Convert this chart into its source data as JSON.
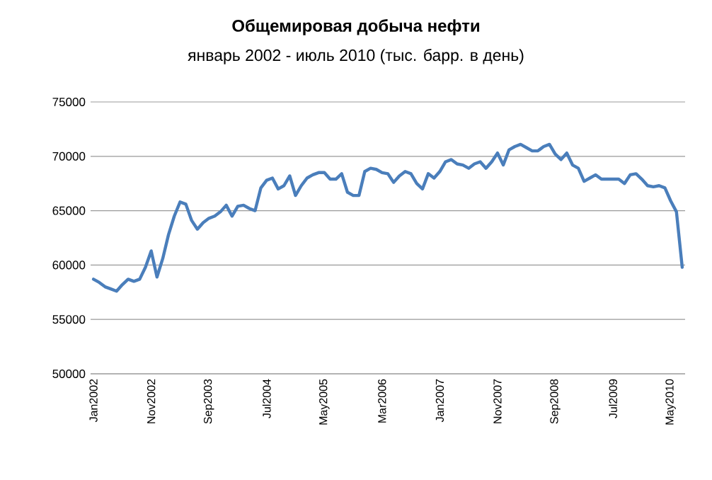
{
  "chart_data": {
    "type": "line",
    "title": "Общемировая добыча нефти",
    "subtitle": "январь 2002 - июль 2010 (тыс. барр. в день)",
    "categories": [
      "Jan2002",
      null,
      null,
      null,
      null,
      null,
      null,
      null,
      null,
      null,
      "Nov2002",
      null,
      null,
      null,
      null,
      null,
      null,
      null,
      null,
      null,
      "Sep2003",
      null,
      null,
      null,
      null,
      null,
      null,
      null,
      null,
      null,
      "Jul2004",
      null,
      null,
      null,
      null,
      null,
      null,
      null,
      null,
      null,
      "May2005",
      null,
      null,
      null,
      null,
      null,
      null,
      null,
      null,
      null,
      "Mar2006",
      null,
      null,
      null,
      null,
      null,
      null,
      null,
      null,
      null,
      "Jan2007",
      null,
      null,
      null,
      null,
      null,
      null,
      null,
      null,
      null,
      "Nov2007",
      null,
      null,
      null,
      null,
      null,
      null,
      null,
      null,
      null,
      "Sep2008",
      null,
      null,
      null,
      null,
      null,
      null,
      null,
      null,
      null,
      "Jul2009",
      null,
      null,
      null,
      null,
      null,
      null,
      null,
      null,
      null,
      "May2010",
      null,
      null
    ],
    "series": [
      {
        "color": "#4a7ebb",
        "values": [
          58700,
          58400,
          58000,
          57800,
          57600,
          58200,
          58700,
          58500,
          58700,
          59800,
          61300,
          58900,
          60600,
          62800,
          64500,
          65800,
          65600,
          64100,
          63300,
          63900,
          64300,
          64500,
          64900,
          65500,
          64500,
          65400,
          65500,
          65200,
          65000,
          67100,
          67800,
          68000,
          67000,
          67300,
          68200,
          66400,
          67300,
          68000,
          68300,
          68500,
          68500,
          67900,
          67900,
          68400,
          66700,
          66400,
          66400,
          68600,
          68900,
          68800,
          68500,
          68400,
          67600,
          68200,
          68600,
          68400,
          67500,
          67000,
          68400,
          68000,
          68600,
          69500,
          69700,
          69300,
          69200,
          68900,
          69300,
          69500,
          68900,
          69500,
          70300,
          69200,
          70600,
          70900,
          71100,
          70800,
          70500,
          70500,
          70900,
          71100,
          70200,
          69700,
          70300,
          69200,
          68900,
          67700,
          68000,
          68300,
          67900,
          67900,
          67900,
          67900,
          67500,
          68300,
          68400,
          67900,
          67300,
          67200,
          67300,
          67100,
          65900,
          64900,
          59800
        ]
      }
    ],
    "ylim": [
      50000,
      75000
    ],
    "yticks": [
      50000,
      55000,
      60000,
      65000,
      70000,
      75000
    ],
    "grid": "y",
    "legend": false,
    "marker": "none",
    "line_style": "solid"
  }
}
